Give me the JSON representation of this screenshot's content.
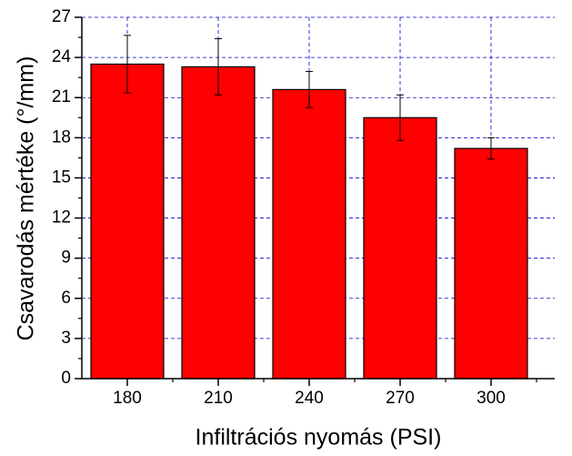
{
  "chart_data": {
    "type": "bar",
    "x_label": "Infiltrációs nyomás (PSI)",
    "y_label": "Csavarodás mértéke (°/mm)",
    "categories": [
      "180",
      "210",
      "240",
      "270",
      "300"
    ],
    "values": [
      23.5,
      23.3,
      21.6,
      19.5,
      17.2
    ],
    "errors": [
      2.15,
      2.1,
      1.35,
      1.7,
      0.8
    ],
    "color": "#ff0000",
    "ylim": [
      0,
      27
    ],
    "yticks": [
      0,
      3,
      6,
      9,
      12,
      15,
      18,
      21,
      24,
      27
    ],
    "grid": true,
    "grid_color": "#0000cc"
  }
}
